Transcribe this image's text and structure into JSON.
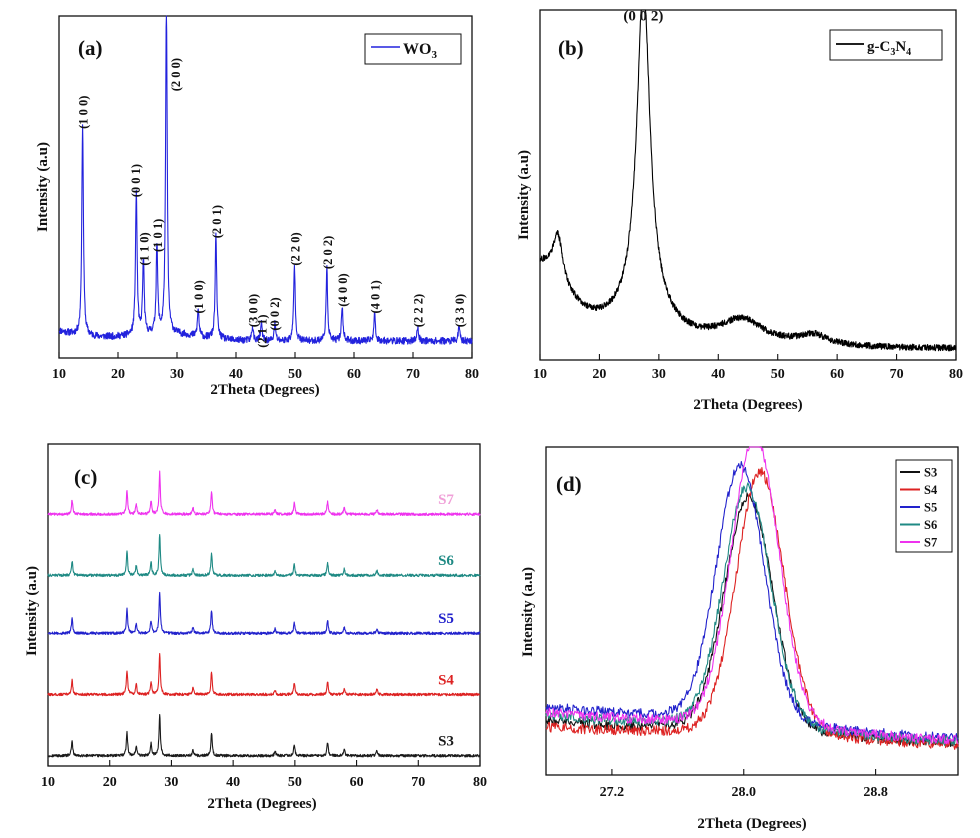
{
  "chart_data": [
    {
      "id": "a",
      "type": "line",
      "panel_label": "(a)",
      "xlabel": "2Theta (Degrees)",
      "ylabel": "Intensity (a.u)",
      "xlim": [
        10,
        80
      ],
      "ylim": [
        0,
        1
      ],
      "xticks": [
        10,
        20,
        30,
        40,
        50,
        60,
        70,
        80
      ],
      "legend": {
        "position": "top-right",
        "label": "WO",
        "sub": "3"
      },
      "series": [
        {
          "name": "WO3",
          "color": "#2222dd",
          "baseline": 0.05,
          "peaks": [
            {
              "x": 14.0,
              "h": 0.62
            },
            {
              "x": 23.1,
              "h": 0.42
            },
            {
              "x": 24.3,
              "h": 0.22
            },
            {
              "x": 26.6,
              "h": 0.26
            },
            {
              "x": 28.2,
              "h": 0.97
            },
            {
              "x": 33.6,
              "h": 0.08
            },
            {
              "x": 36.6,
              "h": 0.3
            },
            {
              "x": 42.8,
              "h": 0.04
            },
            {
              "x": 44.3,
              "h": 0.05
            },
            {
              "x": 46.6,
              "h": 0.05
            },
            {
              "x": 49.9,
              "h": 0.22
            },
            {
              "x": 55.4,
              "h": 0.21
            },
            {
              "x": 58.0,
              "h": 0.1
            },
            {
              "x": 63.5,
              "h": 0.08
            },
            {
              "x": 70.8,
              "h": 0.04
            },
            {
              "x": 77.8,
              "h": 0.04
            }
          ]
        }
      ],
      "annotations": [
        {
          "x": 14.0,
          "y": 0.67,
          "text": "(1 0 0)"
        },
        {
          "x": 22.9,
          "y": 0.47,
          "text": "(0 0 1)"
        },
        {
          "x": 24.3,
          "y": 0.27,
          "text": "(1 1 0)"
        },
        {
          "x": 26.6,
          "y": 0.31,
          "text": "(1 0 1)"
        },
        {
          "x": 29.7,
          "y": 0.78,
          "text": "(2 0 0)"
        },
        {
          "x": 33.6,
          "y": 0.13,
          "text": "(1 0 0)"
        },
        {
          "x": 36.6,
          "y": 0.35,
          "text": "(2 0 1)"
        },
        {
          "x": 42.8,
          "y": 0.09,
          "text": "(3 0 0)"
        },
        {
          "x": 44.3,
          "y": 0.03,
          "text": "(2 1 1)"
        },
        {
          "x": 46.4,
          "y": 0.08,
          "text": "(0 0 2)"
        },
        {
          "x": 49.9,
          "y": 0.27,
          "text": "(2 2 0)"
        },
        {
          "x": 55.4,
          "y": 0.26,
          "text": "(2 0 2)"
        },
        {
          "x": 58.0,
          "y": 0.15,
          "text": "(4 0 0)"
        },
        {
          "x": 63.5,
          "y": 0.13,
          "text": "(4 0 1)"
        },
        {
          "x": 70.8,
          "y": 0.09,
          "text": "(2 2 2)"
        },
        {
          "x": 77.8,
          "y": 0.09,
          "text": "(3 3 0)"
        }
      ]
    },
    {
      "id": "b",
      "type": "line",
      "panel_label": "(b)",
      "xlabel": "2Theta (Degrees)",
      "ylabel": "Intensity (a.u)",
      "xlim": [
        10,
        80
      ],
      "ylim": [
        0,
        1
      ],
      "xticks": [
        10,
        20,
        30,
        40,
        50,
        60,
        70,
        80
      ],
      "legend": {
        "position": "top-right",
        "label": "g-C",
        "sub1": "3",
        "mid": "N",
        "sub2": "4"
      },
      "series": [
        {
          "name": "g-C3N4",
          "color": "#000000",
          "baseline": 0.03,
          "broad": [
            {
              "x": 10.0,
              "h": 0.23,
              "w": 6
            },
            {
              "x": 13.0,
              "h": 0.13,
              "w": 1.0
            },
            {
              "x": 27.4,
              "h": 0.92,
              "w": 1.3
            },
            {
              "x": 27.4,
              "h": 0.1,
              "w": 4.5
            },
            {
              "x": 44.0,
              "h": 0.07,
              "w": 4.5
            },
            {
              "x": 56.0,
              "h": 0.03,
              "w": 3
            }
          ]
        }
      ],
      "annotations": [
        {
          "x": 27.4,
          "y": 0.97,
          "text": "(0 0 2)"
        }
      ]
    },
    {
      "id": "c",
      "type": "line",
      "panel_label": "(c)",
      "xlabel": "2Theta (Degrees)",
      "ylabel": "Intensity (a.u)",
      "xlim": [
        10,
        80
      ],
      "ylim": [
        0,
        1
      ],
      "xticks": [
        10,
        20,
        30,
        40,
        50,
        60,
        70,
        80
      ],
      "peak_positions": [
        13.9,
        22.8,
        24.3,
        26.7,
        28.1,
        33.5,
        36.5,
        46.8,
        49.9,
        55.3,
        58.0,
        63.3
      ],
      "peak_heights": [
        0.045,
        0.075,
        0.03,
        0.04,
        0.13,
        0.02,
        0.07,
        0.015,
        0.035,
        0.04,
        0.02,
        0.015
      ],
      "series": [
        {
          "name": "S3",
          "color": "#1a1a1a",
          "offset": 0.02
        },
        {
          "name": "S4",
          "color": "#dd2222",
          "offset": 0.21
        },
        {
          "name": "S5",
          "color": "#2222cc",
          "offset": 0.4
        },
        {
          "name": "S6",
          "color": "#1f8a84",
          "offset": 0.58
        },
        {
          "name": "S7",
          "color": "#ee33ee",
          "offset": 0.77
        }
      ],
      "labels": [
        {
          "series": "S3",
          "text": "S3",
          "color": "#1a1a1a"
        },
        {
          "series": "S4",
          "text": "S4",
          "color": "#dd2222"
        },
        {
          "series": "S5",
          "text": "S5",
          "color": "#2222cc"
        },
        {
          "series": "S6",
          "text": "S6",
          "color": "#1f8a84"
        },
        {
          "series": "S7",
          "text": "S7",
          "color": "#f0a0d8"
        }
      ]
    },
    {
      "id": "d",
      "type": "line",
      "panel_label": "(d)",
      "xlabel": "2Theta (Degrees)",
      "ylabel": "Intensity (a.u)",
      "xlim": [
        26.8,
        29.3
      ],
      "ylim": [
        0,
        1
      ],
      "xticks": [
        27.2,
        28.0,
        28.8
      ],
      "xtick_labels": [
        "27.2",
        "28.0",
        "28.8"
      ],
      "legend": {
        "position": "top-right"
      },
      "series": [
        {
          "name": "S3",
          "color": "#111111",
          "center": 28.03,
          "height": 0.69,
          "base": 0.17
        },
        {
          "name": "S4",
          "color": "#dd2222",
          "center": 28.1,
          "height": 0.78,
          "base": 0.15
        },
        {
          "name": "S5",
          "color": "#2222cc",
          "center": 27.98,
          "height": 0.76,
          "base": 0.22
        },
        {
          "name": "S6",
          "color": "#1f8a84",
          "center": 28.02,
          "height": 0.71,
          "base": 0.19
        },
        {
          "name": "S7",
          "color": "#ee33ee",
          "center": 28.07,
          "height": 0.86,
          "base": 0.2
        }
      ]
    }
  ]
}
